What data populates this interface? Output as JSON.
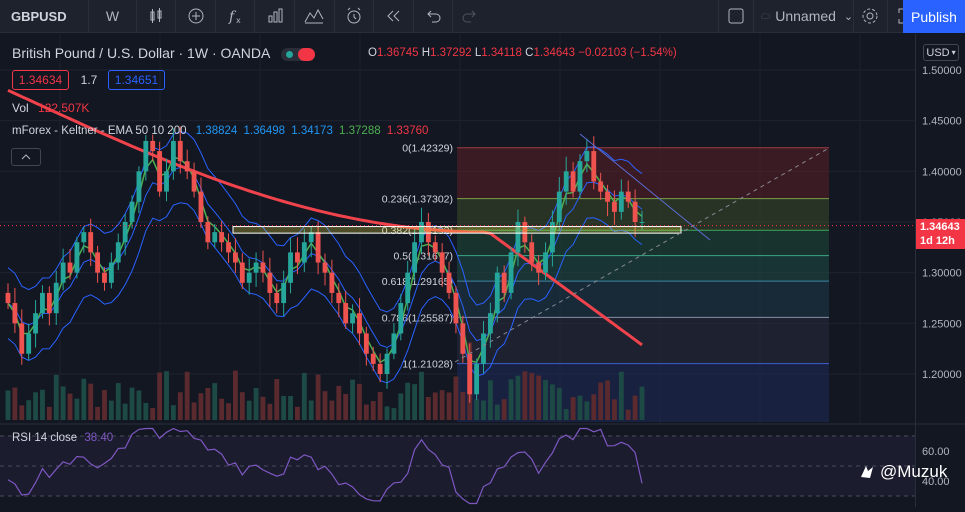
{
  "toolbar": {
    "symbol": "GBPUSD",
    "interval": "W",
    "icons": [
      "compare-icon",
      "add-indicator-icon",
      "indicators-icon",
      "financials-icon",
      "templates-icon",
      "alert-icon",
      "replay-icon",
      "undo-icon",
      "redo-icon"
    ],
    "layout_name": "Unnamed",
    "publish_label": "Publish"
  },
  "legend": {
    "title": "British Pound / U.S. Dollar · 1W · OANDA",
    "open_label": "O",
    "open": "1.36745",
    "high_label": "H",
    "high": "1.37292",
    "low_label": "L",
    "low": "1.34118",
    "close_label": "C",
    "close": "1.34643",
    "change": "−0.02103 (−1.54%)",
    "bid": "1.34634",
    "spread": "1.7",
    "ask": "1.34651",
    "vol_label": "Vol",
    "vol_value": "122.507K",
    "kelt_label": "mForex - Keltner - EMA 50 10 200",
    "kelt_values": [
      "1.38824",
      "1.36498",
      "1.34173",
      "1.37288",
      "1.33760"
    ],
    "rsi_label": "RSI 14 close",
    "rsi_value": "38.40"
  },
  "price_axis": {
    "currency": "USD",
    "last_price": "1.34643",
    "countdown": "1d 12h"
  },
  "watermark": "@Muzuk",
  "colors": {
    "up": "#26a69a",
    "down": "#ef5350",
    "ema200": "#f0434c",
    "ema_fast": "#4caf50",
    "keltner": "#2962ff",
    "rsi": "#7e57c2",
    "accent": "#2962ff"
  },
  "chart_data": {
    "type": "candlestick",
    "title": "British Pound / U.S. Dollar · 1W · OANDA",
    "y_range": [
      1.15,
      1.52
    ],
    "y_ticks": [
      "1.50000",
      "1.45000",
      "1.40000",
      "1.35000",
      "1.30000",
      "1.25000",
      "1.20000"
    ],
    "close_series": [
      1.27,
      1.25,
      1.22,
      1.24,
      1.26,
      1.28,
      1.26,
      1.29,
      1.31,
      1.3,
      1.33,
      1.34,
      1.32,
      1.3,
      1.29,
      1.31,
      1.33,
      1.35,
      1.37,
      1.4,
      1.43,
      1.42,
      1.38,
      1.4,
      1.43,
      1.41,
      1.4,
      1.38,
      1.35,
      1.33,
      1.34,
      1.33,
      1.32,
      1.31,
      1.29,
      1.3,
      1.31,
      1.3,
      1.28,
      1.27,
      1.29,
      1.32,
      1.31,
      1.33,
      1.34,
      1.31,
      1.3,
      1.28,
      1.27,
      1.25,
      1.26,
      1.24,
      1.22,
      1.21,
      1.2,
      1.22,
      1.24,
      1.27,
      1.3,
      1.33,
      1.35,
      1.33,
      1.32,
      1.3,
      1.28,
      1.25,
      1.22,
      1.18,
      1.21,
      1.24,
      1.26,
      1.3,
      1.28,
      1.32,
      1.35,
      1.33,
      1.31,
      1.3,
      1.32,
      1.35,
      1.38,
      1.4,
      1.38,
      1.41,
      1.42,
      1.39,
      1.38,
      1.37,
      1.36,
      1.38,
      1.37,
      1.35,
      1.35
    ],
    "fibonacci": [
      {
        "level": "0",
        "label": "0(1.42329)",
        "price": 1.42329
      },
      {
        "level": "0.236",
        "label": "0.236(1.37302)",
        "price": 1.37302
      },
      {
        "level": "0.382",
        "label": "0.382(1.34192)",
        "price": 1.34192
      },
      {
        "level": "0.5",
        "label": "0.5(1.31677)",
        "price": 1.31677
      },
      {
        "level": "0.618",
        "label": "0.618(1.29165)",
        "price": 1.29165
      },
      {
        "level": "0.786",
        "label": "0.786(1.25587)",
        "price": 1.25587
      },
      {
        "level": "1",
        "label": "1(1.21028)",
        "price": 1.21028
      }
    ],
    "rsi": {
      "label": "RSI 14 close",
      "value": 38.4,
      "ticks": [
        "60.00",
        "40.00"
      ]
    }
  }
}
